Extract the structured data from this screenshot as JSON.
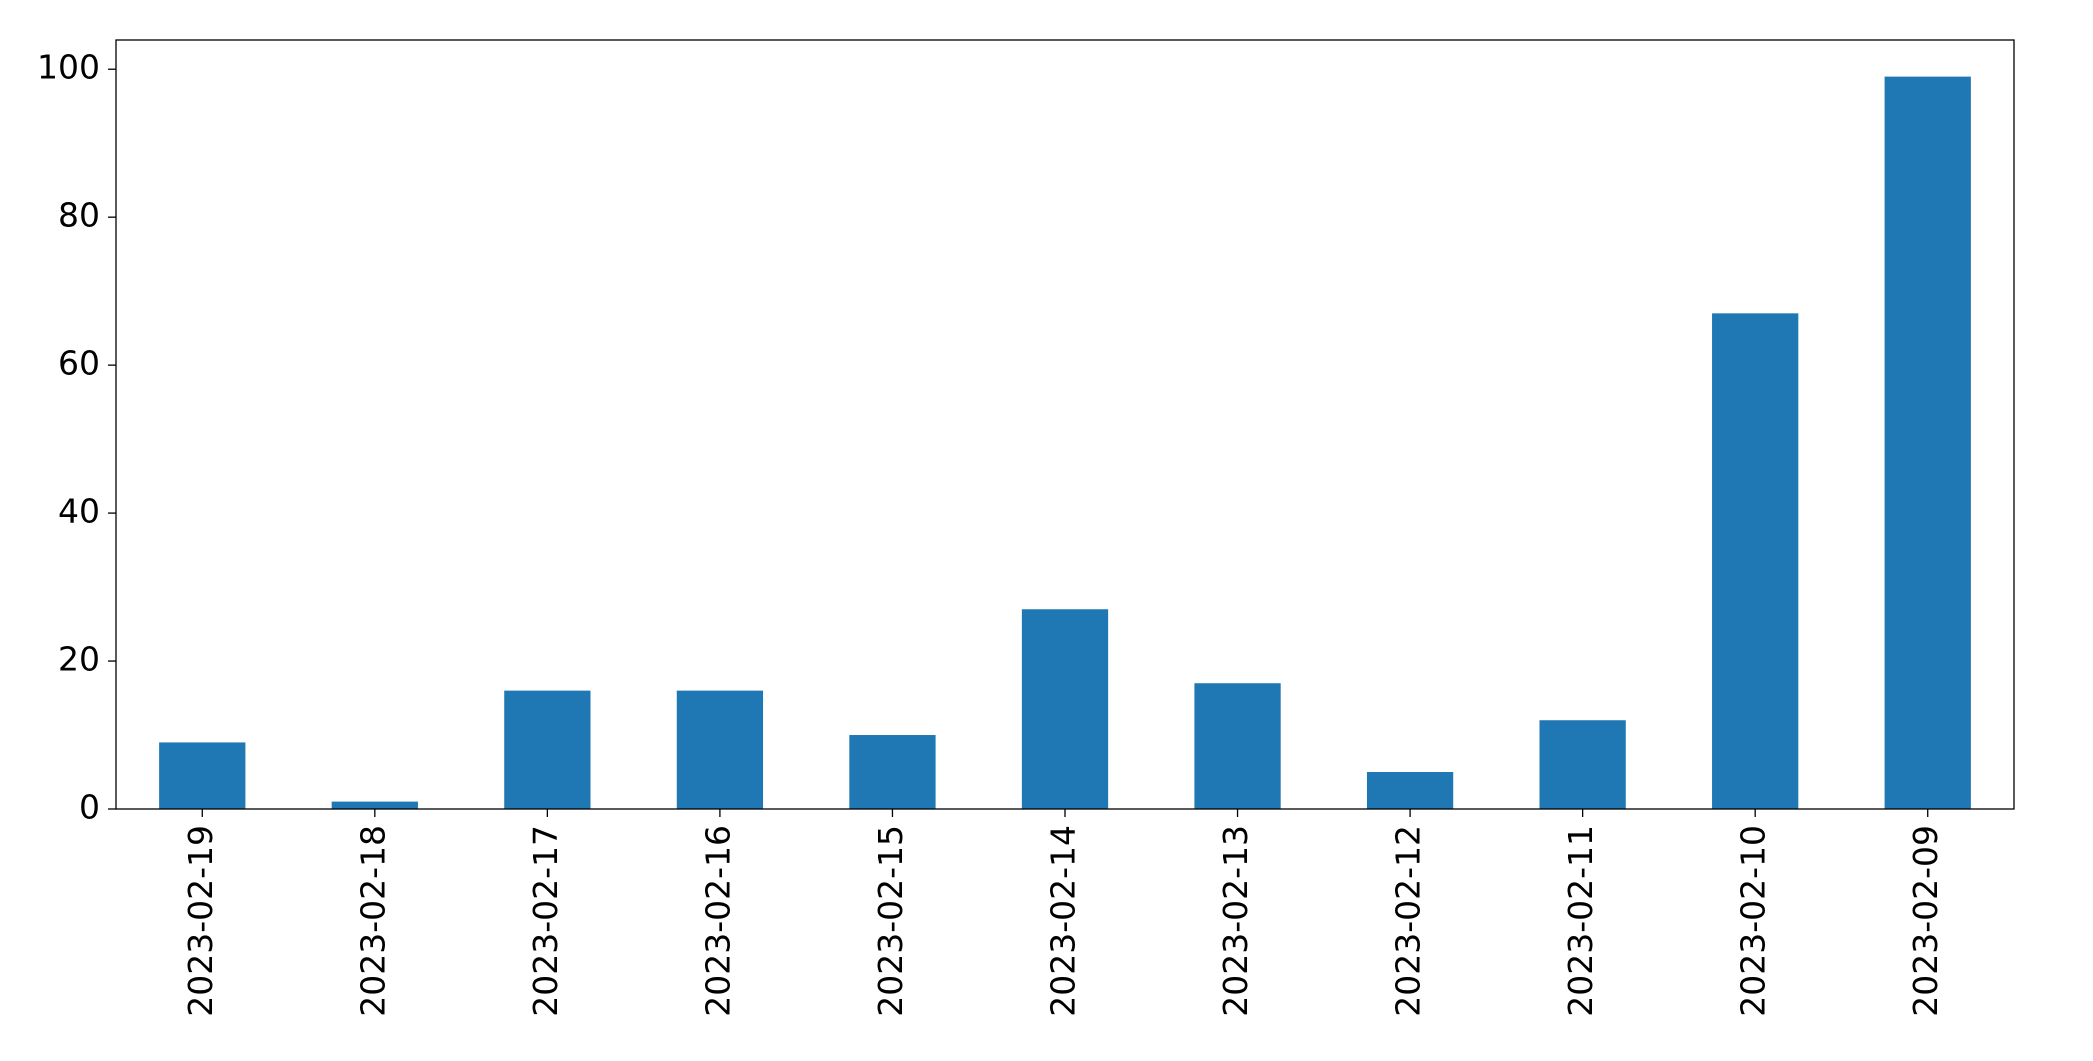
{
  "chart_data": {
    "type": "bar",
    "categories": [
      "2023-02-19",
      "2023-02-18",
      "2023-02-17",
      "2023-02-16",
      "2023-02-15",
      "2023-02-14",
      "2023-02-13",
      "2023-02-12",
      "2023-02-11",
      "2023-02-10",
      "2023-02-09"
    ],
    "values": [
      9,
      1,
      16,
      16,
      10,
      27,
      17,
      5,
      12,
      67,
      99
    ],
    "color": "#1f77b4",
    "ylim": [
      0,
      103.95
    ],
    "yticks": [
      0,
      20,
      40,
      60,
      80,
      100
    ],
    "grid": false
  }
}
